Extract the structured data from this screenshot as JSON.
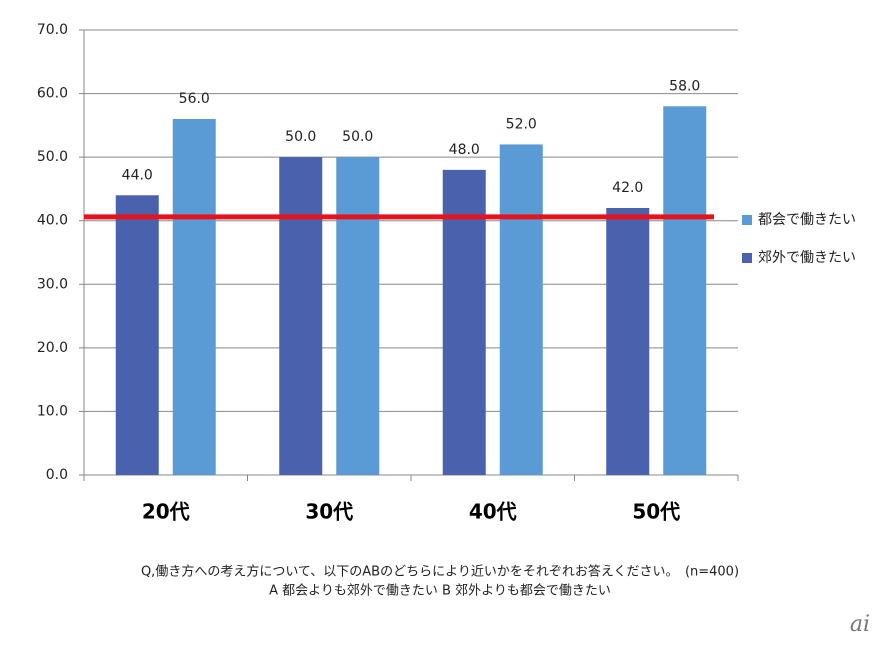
{
  "chart_data": {
    "type": "bar",
    "categories": [
      "20代",
      "30代",
      "40代",
      "50代"
    ],
    "series": [
      {
        "name": "郊外で働きたい",
        "color": "#4a62ad",
        "values": [
          44.0,
          50.0,
          48.0,
          42.0
        ],
        "value_labels": [
          "44.0",
          "50.0",
          "48.0",
          "42.0"
        ]
      },
      {
        "name": "都会で働きたい",
        "color": "#5b9bd5",
        "values": [
          56.0,
          50.0,
          52.0,
          58.0
        ],
        "value_labels": [
          "56.0",
          "50.0",
          "52.0",
          "58.0"
        ]
      }
    ],
    "ylim": [
      0,
      70
    ],
    "yticks": [
      {
        "value": 0,
        "label": "0.0"
      },
      {
        "value": 10,
        "label": "10.0"
      },
      {
        "value": 20,
        "label": "20.0"
      },
      {
        "value": 30,
        "label": "30.0"
      },
      {
        "value": 40,
        "label": "40.0"
      },
      {
        "value": 50,
        "label": "50.0"
      },
      {
        "value": 60,
        "label": "60.0"
      },
      {
        "value": 70,
        "label": "70.0"
      }
    ],
    "grid": true,
    "legend": "right",
    "reference_line": {
      "value": 40.6,
      "color": "#e3141b"
    },
    "notes": [
      "Q,働き方への考え方について、以下のABのどちらにより近いかをそれぞれお答えください。　(n=400)",
      "A 都会よりも郊外で働きたい B 郊外よりも都会で働きたい"
    ],
    "watermark": "ai"
  }
}
